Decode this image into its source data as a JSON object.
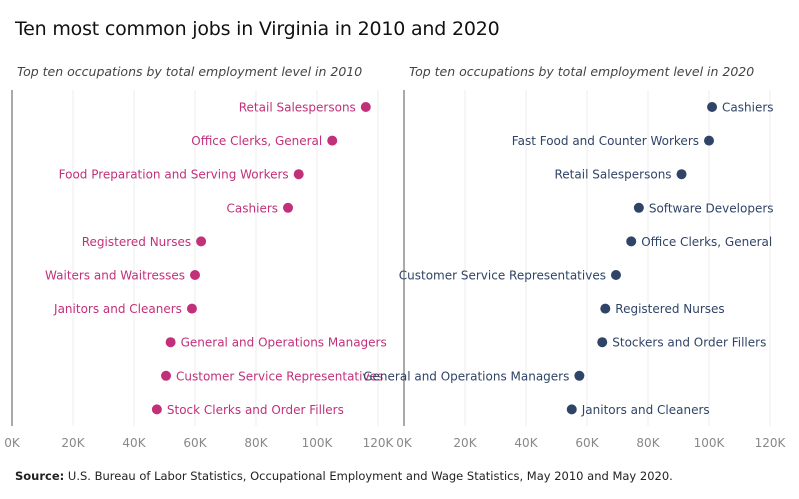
{
  "title": "Ten most common jobs in Virginia in 2010 and 2020",
  "source_label": "Source:",
  "source_text": "U.S. Bureau of Labor Statistics, Occupational Employment and Wage Statistics, May 2010 and May 2020.",
  "colors": {
    "series_2010": "#c2307a",
    "series_2020": "#2f4466",
    "axis": "#555555",
    "grid": "#eeeeee",
    "tick": "#888888"
  },
  "chart_data": [
    {
      "type": "scatter",
      "title": "Top ten occupations by total employment level in 2010",
      "xlim": [
        0,
        120000
      ],
      "xticks": [
        0,
        20000,
        40000,
        60000,
        80000,
        100000,
        120000
      ],
      "xtick_labels": [
        "0K",
        "20K",
        "40K",
        "60K",
        "80K",
        "100K",
        "120K"
      ],
      "grid": true,
      "points": [
        {
          "label": "Retail Salespersons",
          "value": 116000
        },
        {
          "label": "Office Clerks, General",
          "value": 105000
        },
        {
          "label": "Food Preparation and Serving Workers",
          "value": 94000
        },
        {
          "label": "Cashiers",
          "value": 90500
        },
        {
          "label": "Registered Nurses",
          "value": 62000
        },
        {
          "label": "Waiters and Waitresses",
          "value": 60000
        },
        {
          "label": "Janitors and Cleaners",
          "value": 59000
        },
        {
          "label": "General and Operations Managers",
          "value": 52000
        },
        {
          "label": "Customer Service Representatives",
          "value": 50500
        },
        {
          "label": "Stock Clerks and Order Fillers",
          "value": 47500
        }
      ]
    },
    {
      "type": "scatter",
      "title": "Top ten occupations by total employment level in 2020",
      "xlim": [
        0,
        120000
      ],
      "xticks": [
        0,
        20000,
        40000,
        60000,
        80000,
        100000,
        120000
      ],
      "xtick_labels": [
        "0K",
        "20K",
        "40K",
        "60K",
        "80K",
        "100K",
        "120K"
      ],
      "grid": true,
      "points": [
        {
          "label": "Cashiers",
          "value": 101000
        },
        {
          "label": "Fast Food and Counter Workers",
          "value": 100000
        },
        {
          "label": "Retail Salespersons",
          "value": 91000
        },
        {
          "label": "Software Developers",
          "value": 77000
        },
        {
          "label": "Office Clerks, General",
          "value": 74500
        },
        {
          "label": "Customer Service Representatives",
          "value": 69500
        },
        {
          "label": "Registered Nurses",
          "value": 66000
        },
        {
          "label": "Stockers and Order Fillers",
          "value": 65000
        },
        {
          "label": "General and Operations Managers",
          "value": 57500
        },
        {
          "label": "Janitors and Cleaners",
          "value": 55000
        }
      ]
    }
  ]
}
